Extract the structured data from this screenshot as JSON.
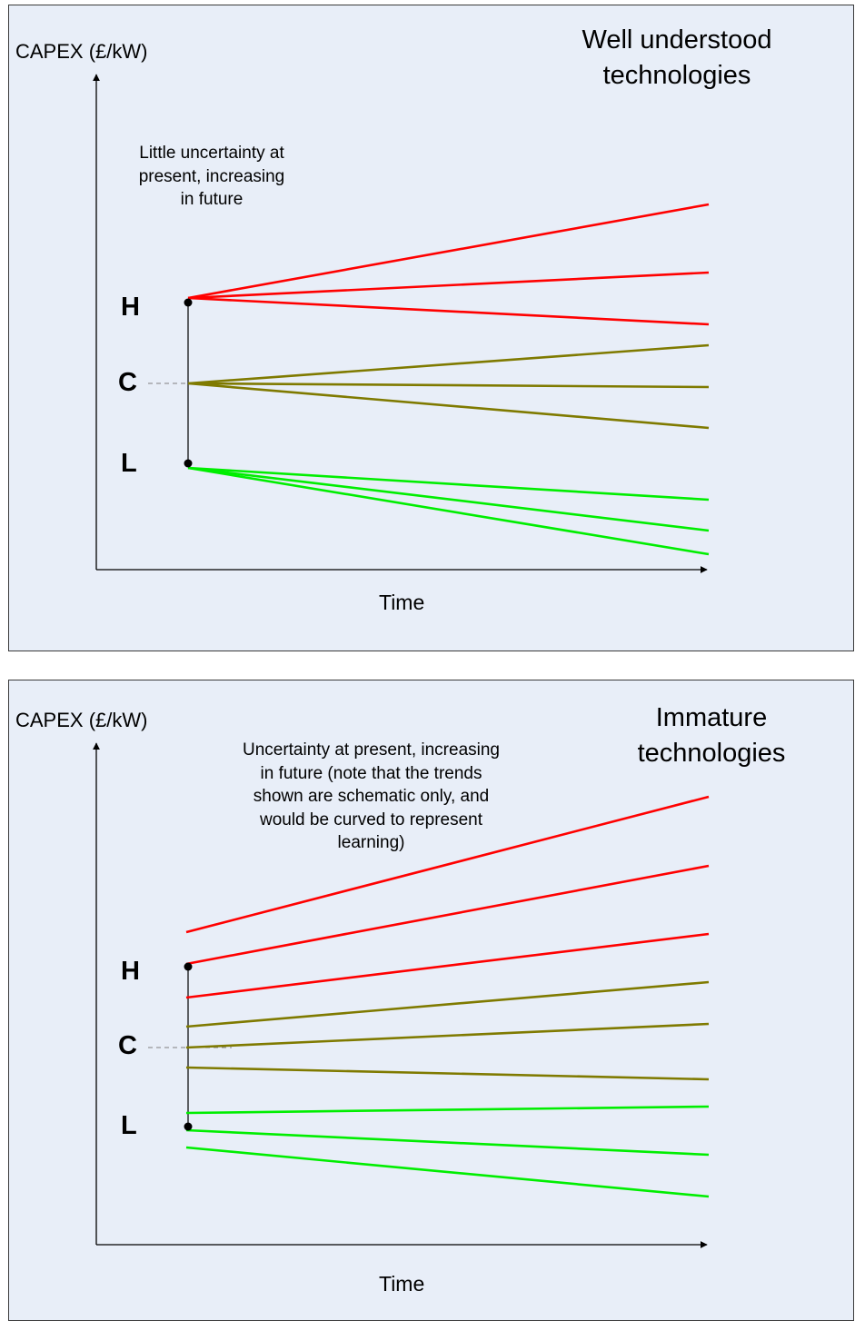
{
  "panels": [
    {
      "title": "Well understood\ntechnologies",
      "ylabel": "CAPEX (£/kW)",
      "xlabel": "Time",
      "note": "Little uncertainty at\npresent, increasing\nin future",
      "points": {
        "high": "H",
        "central": "C",
        "low": "L"
      },
      "colors": {
        "high": "#ff0000",
        "central": "#7f7a00",
        "low": "#00ee00",
        "axis": "#000000"
      }
    },
    {
      "title": "Immature\ntechnologies",
      "ylabel": "CAPEX (£/kW)",
      "xlabel": "Time",
      "note": "Uncertainty at present, increasing\nin future (note that the trends\nshown are schematic only, and\nwould be curved to represent\nlearning)",
      "points": {
        "high": "H",
        "central": "C",
        "low": "L"
      },
      "colors": {
        "high": "#ff0000",
        "central": "#7f7a00",
        "low": "#00ee00",
        "axis": "#000000"
      }
    }
  ]
}
